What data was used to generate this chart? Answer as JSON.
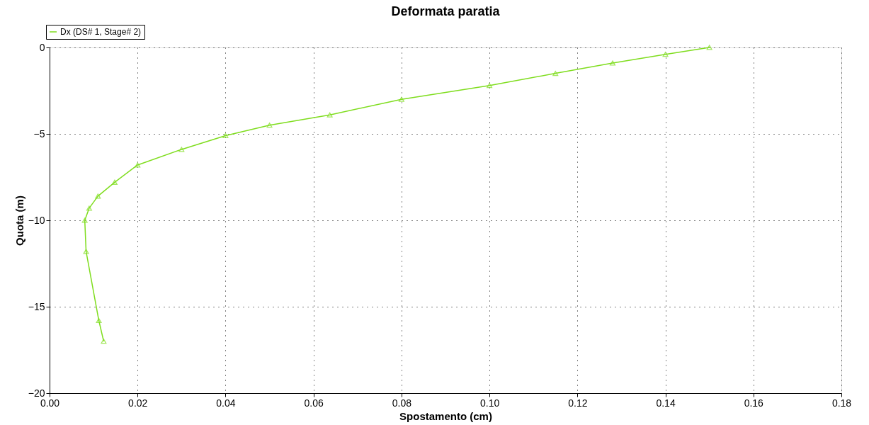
{
  "chart_data": {
    "type": "line",
    "title": "Deformata paratia",
    "xlabel": "Spostamento (cm)",
    "ylabel": "Quota (m)",
    "xlim": [
      0,
      0.18
    ],
    "ylim": [
      -20,
      0
    ],
    "xticks": [
      {
        "value": 0,
        "label": "0.00"
      },
      {
        "value": 0.02,
        "label": "0.02"
      },
      {
        "value": 0.04,
        "label": "0.04"
      },
      {
        "value": 0.06,
        "label": "0.06"
      },
      {
        "value": 0.08,
        "label": "0.08"
      },
      {
        "value": 0.1,
        "label": "0.10"
      },
      {
        "value": 0.12,
        "label": "0.12"
      },
      {
        "value": 0.14,
        "label": "0.14"
      },
      {
        "value": 0.16,
        "label": "0.16"
      },
      {
        "value": 0.18,
        "label": "0.18"
      }
    ],
    "yticks": [
      -20,
      -15,
      -10,
      -5,
      0
    ],
    "grid": true,
    "legend": "top left",
    "marker": "triangle",
    "line_style": "solid",
    "series": [
      {
        "name": "Dx (DS# 1, Stage# 2)",
        "color": "#7fdd1e",
        "x": [
          0.15,
          0.14,
          0.128,
          0.115,
          0.1,
          0.08,
          0.0637,
          0.05,
          0.04,
          0.03,
          0.02,
          0.0148,
          0.011,
          0.009,
          0.008,
          0.0083,
          0.0112,
          0.0123
        ],
        "values": [
          0,
          -0.4,
          -0.9,
          -1.5,
          -2.2,
          -3.0,
          -3.9,
          -4.5,
          -5.1,
          -5.9,
          -6.8,
          -7.8,
          -8.6,
          -9.3,
          -10,
          -11.8,
          -15.8,
          -17
        ]
      }
    ]
  }
}
